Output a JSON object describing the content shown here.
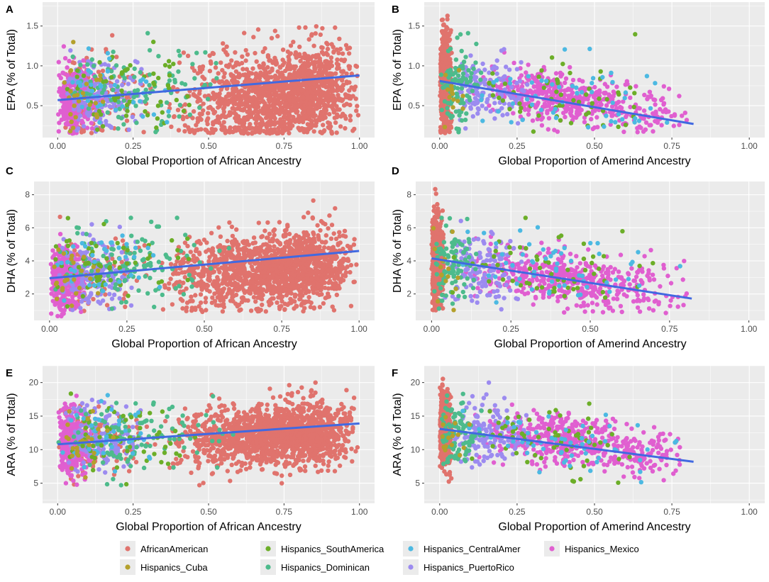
{
  "legend": {
    "items": [
      {
        "label": "AfricanAmerican",
        "color": "#E0736D"
      },
      {
        "label": "Hispanics_Cuba",
        "color": "#B4A02C"
      },
      {
        "label": "Hispanics_SouthAmerica",
        "color": "#6CAE28"
      },
      {
        "label": "Hispanics_Dominican",
        "color": "#4DBB8C"
      },
      {
        "label": "Hispanics_CentralAmer",
        "color": "#4CB9E2"
      },
      {
        "label": "Hispanics_PuertoRico",
        "color": "#9C8BF0"
      },
      {
        "label": "Hispanics_Mexico",
        "color": "#E05FD0"
      }
    ]
  },
  "colors": {
    "panel_bg": "#EBEBEB",
    "grid": "#FFFFFF",
    "fit_line": "#4169E1"
  },
  "chart_data": [
    {
      "panel": "A",
      "type": "scatter",
      "xlabel": "Global Proportion of African Ancestry",
      "ylabel": "EPA (% of Total)",
      "xlim": [
        -0.05,
        1.05
      ],
      "ylim": [
        0.1,
        1.8
      ],
      "xticks": [
        0,
        0.25,
        0.5,
        0.75,
        1
      ],
      "xtick_labels": [
        "0.00",
        "0.25",
        "0.50",
        "0.75",
        "1.00"
      ],
      "yticks": [
        0.5,
        1.0,
        1.5
      ],
      "ytick_labels": [
        "0.5",
        "1.0",
        "1.5"
      ],
      "cap_values": [
        1.41,
        1.76
      ],
      "trend": {
        "x": [
          0.0,
          1.0
        ],
        "y": [
          0.57,
          0.88
        ]
      },
      "clusters": [
        {
          "group": 0,
          "n": 1500,
          "x": [
            0.35,
            1.0
          ],
          "xmode": 0.85,
          "base": 0.5,
          "slope": 0.35,
          "sd": 0.28,
          "ymin": 0.15,
          "ymax": 1.76
        },
        {
          "group": 0,
          "n": 140,
          "x": [
            0.0,
            0.35
          ],
          "xmode": 0.05,
          "base": 0.6,
          "slope": 0.3,
          "sd": 0.28,
          "ymin": 0.15,
          "ymax": 1.76
        },
        {
          "group": 6,
          "n": 320,
          "x": [
            0.0,
            0.15
          ],
          "xmode": 0.03,
          "base": 0.58,
          "slope": 0.0,
          "sd": 0.2,
          "ymin": 0.15,
          "ymax": 1.41
        },
        {
          "group": 5,
          "n": 160,
          "x": [
            0.02,
            0.3
          ],
          "xmode": 0.1,
          "base": 0.62,
          "slope": 0.0,
          "sd": 0.22,
          "ymin": 0.15,
          "ymax": 1.41
        },
        {
          "group": 3,
          "n": 110,
          "x": [
            0.0,
            0.6
          ],
          "xmode": 0.2,
          "base": 0.7,
          "slope": 0.0,
          "sd": 0.25,
          "ymin": 0.15,
          "ymax": 1.41
        },
        {
          "group": 2,
          "n": 60,
          "x": [
            0.0,
            0.5
          ],
          "xmode": 0.15,
          "base": 0.7,
          "slope": 0.0,
          "sd": 0.25,
          "ymin": 0.15,
          "ymax": 1.41
        },
        {
          "group": 4,
          "n": 40,
          "x": [
            0.0,
            0.4
          ],
          "xmode": 0.1,
          "base": 0.7,
          "slope": 0.0,
          "sd": 0.25,
          "ymin": 0.15,
          "ymax": 1.41
        },
        {
          "group": 1,
          "n": 25,
          "x": [
            0.0,
            0.2
          ],
          "xmode": 0.05,
          "base": 0.65,
          "slope": 0.0,
          "sd": 0.25,
          "ymin": 0.15,
          "ymax": 1.41
        }
      ]
    },
    {
      "panel": "B",
      "type": "scatter",
      "xlabel": "Global Proportion of Amerind Ancestry",
      "ylabel": "EPA (% of Total)",
      "xlim": [
        -0.05,
        1.05
      ],
      "ylim": [
        0.1,
        1.8
      ],
      "xticks": [
        0,
        0.25,
        0.5,
        0.75,
        1
      ],
      "xtick_labels": [
        "0.00",
        "0.25",
        "0.50",
        "0.75",
        "1.00"
      ],
      "yticks": [
        0.5,
        1.0,
        1.5
      ],
      "ytick_labels": [
        "0.5",
        "1.0",
        "1.5"
      ],
      "cap_values": [
        1.41,
        1.76
      ],
      "trend": {
        "x": [
          0.0,
          0.82
        ],
        "y": [
          0.81,
          0.27
        ]
      },
      "clusters": [
        {
          "group": 0,
          "n": 650,
          "x": [
            0.0,
            0.04
          ],
          "xmode": 0.01,
          "base": 0.8,
          "slope": 0.0,
          "sd": 0.3,
          "ymin": 0.15,
          "ymax": 1.76
        },
        {
          "group": 6,
          "n": 480,
          "x": [
            0.1,
            0.82
          ],
          "xmode": 0.42,
          "base": 0.8,
          "slope": -0.65,
          "sd": 0.16,
          "ymin": 0.15,
          "ymax": 1.41
        },
        {
          "group": 5,
          "n": 140,
          "x": [
            0.04,
            0.3
          ],
          "xmode": 0.12,
          "base": 0.75,
          "slope": -0.3,
          "sd": 0.2,
          "ymin": 0.15,
          "ymax": 1.41
        },
        {
          "group": 3,
          "n": 100,
          "x": [
            0.0,
            0.15
          ],
          "xmode": 0.04,
          "base": 0.75,
          "slope": 0.0,
          "sd": 0.28,
          "ymin": 0.15,
          "ymax": 1.41
        },
        {
          "group": 2,
          "n": 60,
          "x": [
            0.05,
            0.75
          ],
          "xmode": 0.35,
          "base": 0.75,
          "slope": -0.3,
          "sd": 0.22,
          "ymin": 0.15,
          "ymax": 1.41
        },
        {
          "group": 4,
          "n": 55,
          "x": [
            0.05,
            0.8
          ],
          "xmode": 0.35,
          "base": 0.8,
          "slope": -0.5,
          "sd": 0.25,
          "ymin": 0.15,
          "ymax": 1.41
        },
        {
          "group": 1,
          "n": 15,
          "x": [
            0.0,
            0.1
          ],
          "xmode": 0.03,
          "base": 0.7,
          "slope": 0.0,
          "sd": 0.2,
          "ymin": 0.15,
          "ymax": 1.41
        }
      ]
    },
    {
      "panel": "C",
      "type": "scatter",
      "xlabel": "Global Proportion of African Ancestry",
      "ylabel": "DHA (% of Total)",
      "xlim": [
        -0.05,
        1.05
      ],
      "ylim": [
        0.4,
        8.8
      ],
      "xticks": [
        0,
        0.25,
        0.5,
        0.75,
        1
      ],
      "xtick_labels": [
        "0.00",
        "0.25",
        "0.50",
        "0.75",
        "1.00"
      ],
      "yticks": [
        2,
        4,
        6,
        8
      ],
      "ytick_labels": [
        "2",
        "4",
        "6",
        "8"
      ],
      "cap_values": [
        8.4
      ],
      "trend": {
        "x": [
          0.0,
          1.0
        ],
        "y": [
          2.95,
          4.6
        ]
      },
      "clusters": [
        {
          "group": 0,
          "n": 1500,
          "x": [
            0.35,
            1.0
          ],
          "xmode": 0.82,
          "base": 2.9,
          "slope": 1.7,
          "sd": 1.1,
          "ymin": 0.9,
          "ymax": 8.4
        },
        {
          "group": 0,
          "n": 120,
          "x": [
            0.0,
            0.35
          ],
          "xmode": 0.05,
          "base": 3.0,
          "slope": 1.5,
          "sd": 1.0,
          "ymin": 0.9,
          "ymax": 8.4
        },
        {
          "group": 6,
          "n": 320,
          "x": [
            0.0,
            0.12
          ],
          "xmode": 0.03,
          "base": 2.8,
          "slope": 0.0,
          "sd": 0.9,
          "ymin": 0.6,
          "ymax": 6.5
        },
        {
          "group": 5,
          "n": 160,
          "x": [
            0.02,
            0.3
          ],
          "xmode": 0.1,
          "base": 3.2,
          "slope": 0.0,
          "sd": 1.0,
          "ymin": 1.0,
          "ymax": 6.5
        },
        {
          "group": 3,
          "n": 110,
          "x": [
            0.0,
            0.6
          ],
          "xmode": 0.2,
          "base": 3.8,
          "slope": 0.0,
          "sd": 1.2,
          "ymin": 1.0,
          "ymax": 6.6
        },
        {
          "group": 2,
          "n": 60,
          "x": [
            0.0,
            0.5
          ],
          "xmode": 0.15,
          "base": 3.8,
          "slope": 0.0,
          "sd": 1.2,
          "ymin": 1.0,
          "ymax": 6.6
        },
        {
          "group": 4,
          "n": 40,
          "x": [
            0.0,
            0.4
          ],
          "xmode": 0.1,
          "base": 3.6,
          "slope": 0.0,
          "sd": 1.0,
          "ymin": 1.0,
          "ymax": 6.6
        },
        {
          "group": 1,
          "n": 25,
          "x": [
            0.0,
            0.2
          ],
          "xmode": 0.05,
          "base": 3.3,
          "slope": 0.0,
          "sd": 1.0,
          "ymin": 1.0,
          "ymax": 6.5
        }
      ]
    },
    {
      "panel": "D",
      "type": "scatter",
      "xlabel": "Global Proportion of Amerind Ancestry",
      "ylabel": "DHA (% of Total)",
      "xlim": [
        -0.05,
        1.05
      ],
      "ylim": [
        0.4,
        8.8
      ],
      "xticks": [
        0,
        0.25,
        0.5,
        0.75,
        1
      ],
      "xtick_labels": [
        "0.00",
        "0.25",
        "0.50",
        "0.75",
        "1.00"
      ],
      "yticks": [
        2,
        4,
        6,
        8
      ],
      "ytick_labels": [
        "2",
        "4",
        "6",
        "8"
      ],
      "cap_values": [
        8.4
      ],
      "trend": {
        "x": [
          0.0,
          0.82
        ],
        "y": [
          4.15,
          1.72
        ]
      },
      "clusters": [
        {
          "group": 0,
          "n": 650,
          "x": [
            0.0,
            0.04
          ],
          "xmode": 0.01,
          "base": 4.0,
          "slope": 0.0,
          "sd": 1.4,
          "ymin": 1.0,
          "ymax": 8.4
        },
        {
          "group": 6,
          "n": 480,
          "x": [
            0.1,
            0.82
          ],
          "xmode": 0.42,
          "base": 3.6,
          "slope": -2.2,
          "sd": 0.8,
          "ymin": 0.8,
          "ymax": 6.6
        },
        {
          "group": 5,
          "n": 140,
          "x": [
            0.04,
            0.3
          ],
          "xmode": 0.12,
          "base": 3.6,
          "slope": -1.0,
          "sd": 1.0,
          "ymin": 1.0,
          "ymax": 6.6
        },
        {
          "group": 3,
          "n": 100,
          "x": [
            0.0,
            0.15
          ],
          "xmode": 0.04,
          "base": 3.8,
          "slope": 0.0,
          "sd": 1.2,
          "ymin": 1.0,
          "ymax": 6.6
        },
        {
          "group": 2,
          "n": 60,
          "x": [
            0.05,
            0.75
          ],
          "xmode": 0.35,
          "base": 3.8,
          "slope": -1.0,
          "sd": 1.2,
          "ymin": 1.0,
          "ymax": 6.6
        },
        {
          "group": 4,
          "n": 55,
          "x": [
            0.05,
            0.8
          ],
          "xmode": 0.35,
          "base": 3.8,
          "slope": -1.5,
          "sd": 1.1,
          "ymin": 1.0,
          "ymax": 6.6
        },
        {
          "group": 1,
          "n": 15,
          "x": [
            0.0,
            0.1
          ],
          "xmode": 0.03,
          "base": 3.5,
          "slope": 0.0,
          "sd": 1.0,
          "ymin": 1.0,
          "ymax": 6.5
        }
      ]
    },
    {
      "panel": "E",
      "type": "scatter",
      "xlabel": "Global Proportion of African Ancestry",
      "ylabel": "ARA (% of Total)",
      "xlim": [
        -0.05,
        1.05
      ],
      "ylim": [
        2.0,
        22.5
      ],
      "xticks": [
        0,
        0.25,
        0.5,
        0.75,
        1
      ],
      "xtick_labels": [
        "0.00",
        "0.25",
        "0.50",
        "0.75",
        "1.00"
      ],
      "yticks": [
        5,
        10,
        15,
        20
      ],
      "ytick_labels": [
        "5",
        "10",
        "15",
        "20"
      ],
      "cap_values": [],
      "trend": {
        "x": [
          0.0,
          1.0
        ],
        "y": [
          10.8,
          13.9
        ]
      },
      "clusters": [
        {
          "group": 0,
          "n": 1500,
          "x": [
            0.35,
            1.0
          ],
          "xmode": 0.82,
          "base": 11.0,
          "slope": 3.0,
          "sd": 2.3,
          "ymin": 4.5,
          "ymax": 21.5
        },
        {
          "group": 0,
          "n": 120,
          "x": [
            0.0,
            0.35
          ],
          "xmode": 0.05,
          "base": 11.0,
          "slope": 2.5,
          "sd": 2.3,
          "ymin": 4.5,
          "ymax": 21.5
        },
        {
          "group": 6,
          "n": 320,
          "x": [
            0.0,
            0.12
          ],
          "xmode": 0.03,
          "base": 11.0,
          "slope": 0.0,
          "sd": 2.4,
          "ymin": 3.0,
          "ymax": 20.0
        },
        {
          "group": 5,
          "n": 160,
          "x": [
            0.02,
            0.3
          ],
          "xmode": 0.1,
          "base": 11.5,
          "slope": 0.0,
          "sd": 2.5,
          "ymin": 4.0,
          "ymax": 20.0
        },
        {
          "group": 3,
          "n": 110,
          "x": [
            0.0,
            0.6
          ],
          "xmode": 0.2,
          "base": 12.0,
          "slope": 0.0,
          "sd": 2.6,
          "ymin": 4.0,
          "ymax": 20.0
        },
        {
          "group": 2,
          "n": 60,
          "x": [
            0.0,
            0.5
          ],
          "xmode": 0.15,
          "base": 11.5,
          "slope": 0.0,
          "sd": 2.6,
          "ymin": 4.0,
          "ymax": 20.0
        },
        {
          "group": 4,
          "n": 40,
          "x": [
            0.0,
            0.4
          ],
          "xmode": 0.1,
          "base": 12.0,
          "slope": 0.0,
          "sd": 2.6,
          "ymin": 4.0,
          "ymax": 20.0
        },
        {
          "group": 1,
          "n": 25,
          "x": [
            0.0,
            0.2
          ],
          "xmode": 0.05,
          "base": 11.0,
          "slope": 0.0,
          "sd": 2.4,
          "ymin": 4.0,
          "ymax": 20.0
        }
      ]
    },
    {
      "panel": "F",
      "type": "scatter",
      "xlabel": "Global Proportion of Amerind Ancestry",
      "ylabel": "ARA (% of Total)",
      "xlim": [
        -0.05,
        1.05
      ],
      "ylim": [
        2.0,
        22.5
      ],
      "xticks": [
        0,
        0.25,
        0.5,
        0.75,
        1
      ],
      "xtick_labels": [
        "0.00",
        "0.25",
        "0.50",
        "0.75",
        "1.00"
      ],
      "yticks": [
        5,
        10,
        15,
        20
      ],
      "ytick_labels": [
        "5",
        "10",
        "15",
        "20"
      ],
      "cap_values": [],
      "trend": {
        "x": [
          0.0,
          0.82
        ],
        "y": [
          13.1,
          8.2
        ]
      },
      "clusters": [
        {
          "group": 0,
          "n": 650,
          "x": [
            0.0,
            0.04
          ],
          "xmode": 0.01,
          "base": 13.0,
          "slope": 0.0,
          "sd": 2.6,
          "ymin": 5.0,
          "ymax": 21.5
        },
        {
          "group": 6,
          "n": 480,
          "x": [
            0.1,
            0.82
          ],
          "xmode": 0.4,
          "base": 13.0,
          "slope": -5.5,
          "sd": 1.9,
          "ymin": 3.0,
          "ymax": 20.0
        },
        {
          "group": 5,
          "n": 140,
          "x": [
            0.04,
            0.3
          ],
          "xmode": 0.12,
          "base": 12.5,
          "slope": -3.0,
          "sd": 2.2,
          "ymin": 4.0,
          "ymax": 20.0
        },
        {
          "group": 3,
          "n": 100,
          "x": [
            0.0,
            0.15
          ],
          "xmode": 0.04,
          "base": 12.5,
          "slope": 0.0,
          "sd": 2.5,
          "ymin": 5.0,
          "ymax": 20.0
        },
        {
          "group": 2,
          "n": 60,
          "x": [
            0.05,
            0.75
          ],
          "xmode": 0.35,
          "base": 12.0,
          "slope": -3.0,
          "sd": 2.4,
          "ymin": 5.0,
          "ymax": 20.0
        },
        {
          "group": 4,
          "n": 55,
          "x": [
            0.05,
            0.8
          ],
          "xmode": 0.35,
          "base": 12.0,
          "slope": -3.5,
          "sd": 2.3,
          "ymin": 5.0,
          "ymax": 20.0
        },
        {
          "group": 1,
          "n": 15,
          "x": [
            0.0,
            0.1
          ],
          "xmode": 0.03,
          "base": 12.0,
          "slope": 0.0,
          "sd": 2.0,
          "ymin": 5.0,
          "ymax": 20.0
        }
      ]
    }
  ]
}
